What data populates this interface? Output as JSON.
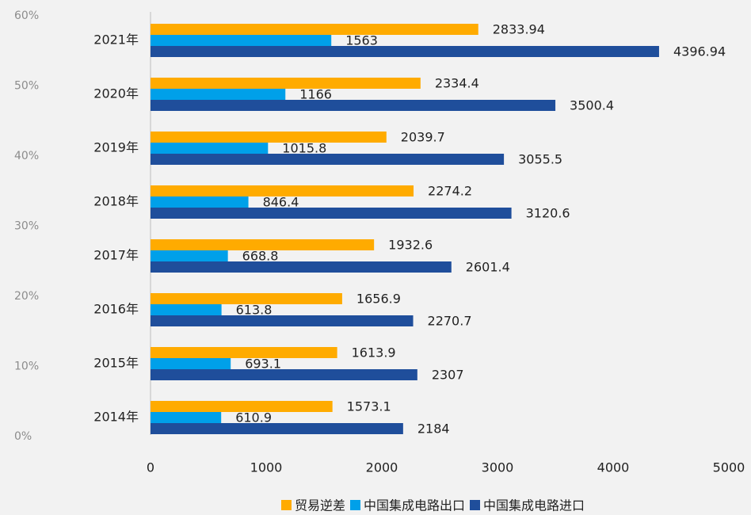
{
  "chart_data": {
    "type": "bar",
    "orientation": "horizontal",
    "categories": [
      "2014年",
      "2015年",
      "2016年",
      "2017年",
      "2018年",
      "2019年",
      "2020年",
      "2021年"
    ],
    "series": [
      {
        "name": "贸易逆差",
        "color": "#ffab00",
        "values": [
          1573.1,
          1613.9,
          1656.9,
          1932.6,
          2274.2,
          2039.7,
          2334.4,
          2833.94
        ]
      },
      {
        "name": "中国集成电路出口",
        "color": "#00a0e9",
        "values": [
          610.9,
          693.1,
          613.8,
          668.8,
          846.4,
          1015.8,
          1166,
          1563
        ]
      },
      {
        "name": "中国集成电路进口",
        "color": "#1f4e9b",
        "values": [
          2184,
          2307,
          2270.7,
          2601.4,
          3120.6,
          3055.5,
          3500.4,
          4396.94
        ]
      }
    ],
    "xlim": [
      0,
      5000
    ],
    "xticks": [
      0,
      1000,
      2000,
      3000,
      4000,
      5000
    ],
    "y2lim": [
      0,
      60
    ],
    "y2ticks": [
      {
        "value": 0,
        "label": "0%"
      },
      {
        "value": 10,
        "label": "10%"
      },
      {
        "value": 20,
        "label": "20%"
      },
      {
        "value": 30,
        "label": "30%"
      },
      {
        "value": 40,
        "label": "40%"
      },
      {
        "value": 50,
        "label": "50%"
      },
      {
        "value": 60,
        "label": "60%"
      }
    ],
    "legend": "bottom"
  }
}
